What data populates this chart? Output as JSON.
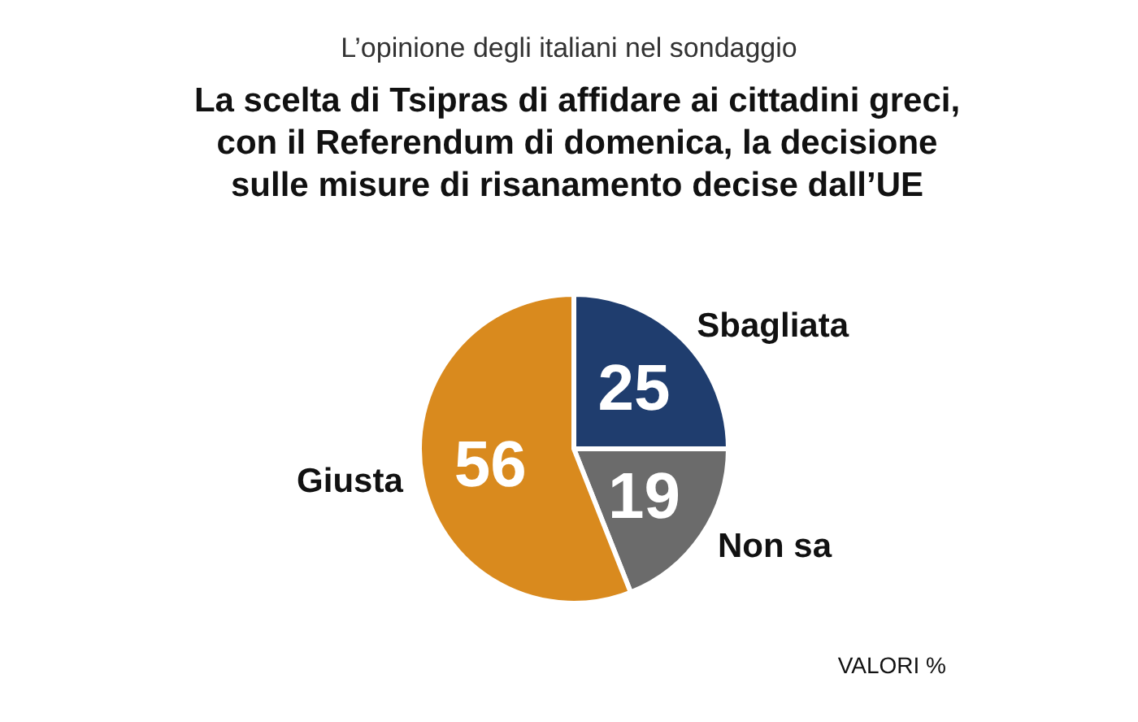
{
  "chart_data": {
    "type": "pie",
    "subtitle": "L’opinione degli italiani nel sondaggio",
    "title": "La scelta di Tsipras di affidare ai cittadini greci,\ncon il Referendum di domenica, la decisione\nsulle misure di risanamento decise dall’UE",
    "categories": [
      "Sbagliata",
      "Non sa",
      "Giusta"
    ],
    "values": [
      25,
      19,
      56
    ],
    "colors": [
      "#1f3d6e",
      "#6b6b6b",
      "#d98a1e"
    ],
    "data_labels": true,
    "annotations": [
      "VALORI %"
    ],
    "legend": false
  }
}
